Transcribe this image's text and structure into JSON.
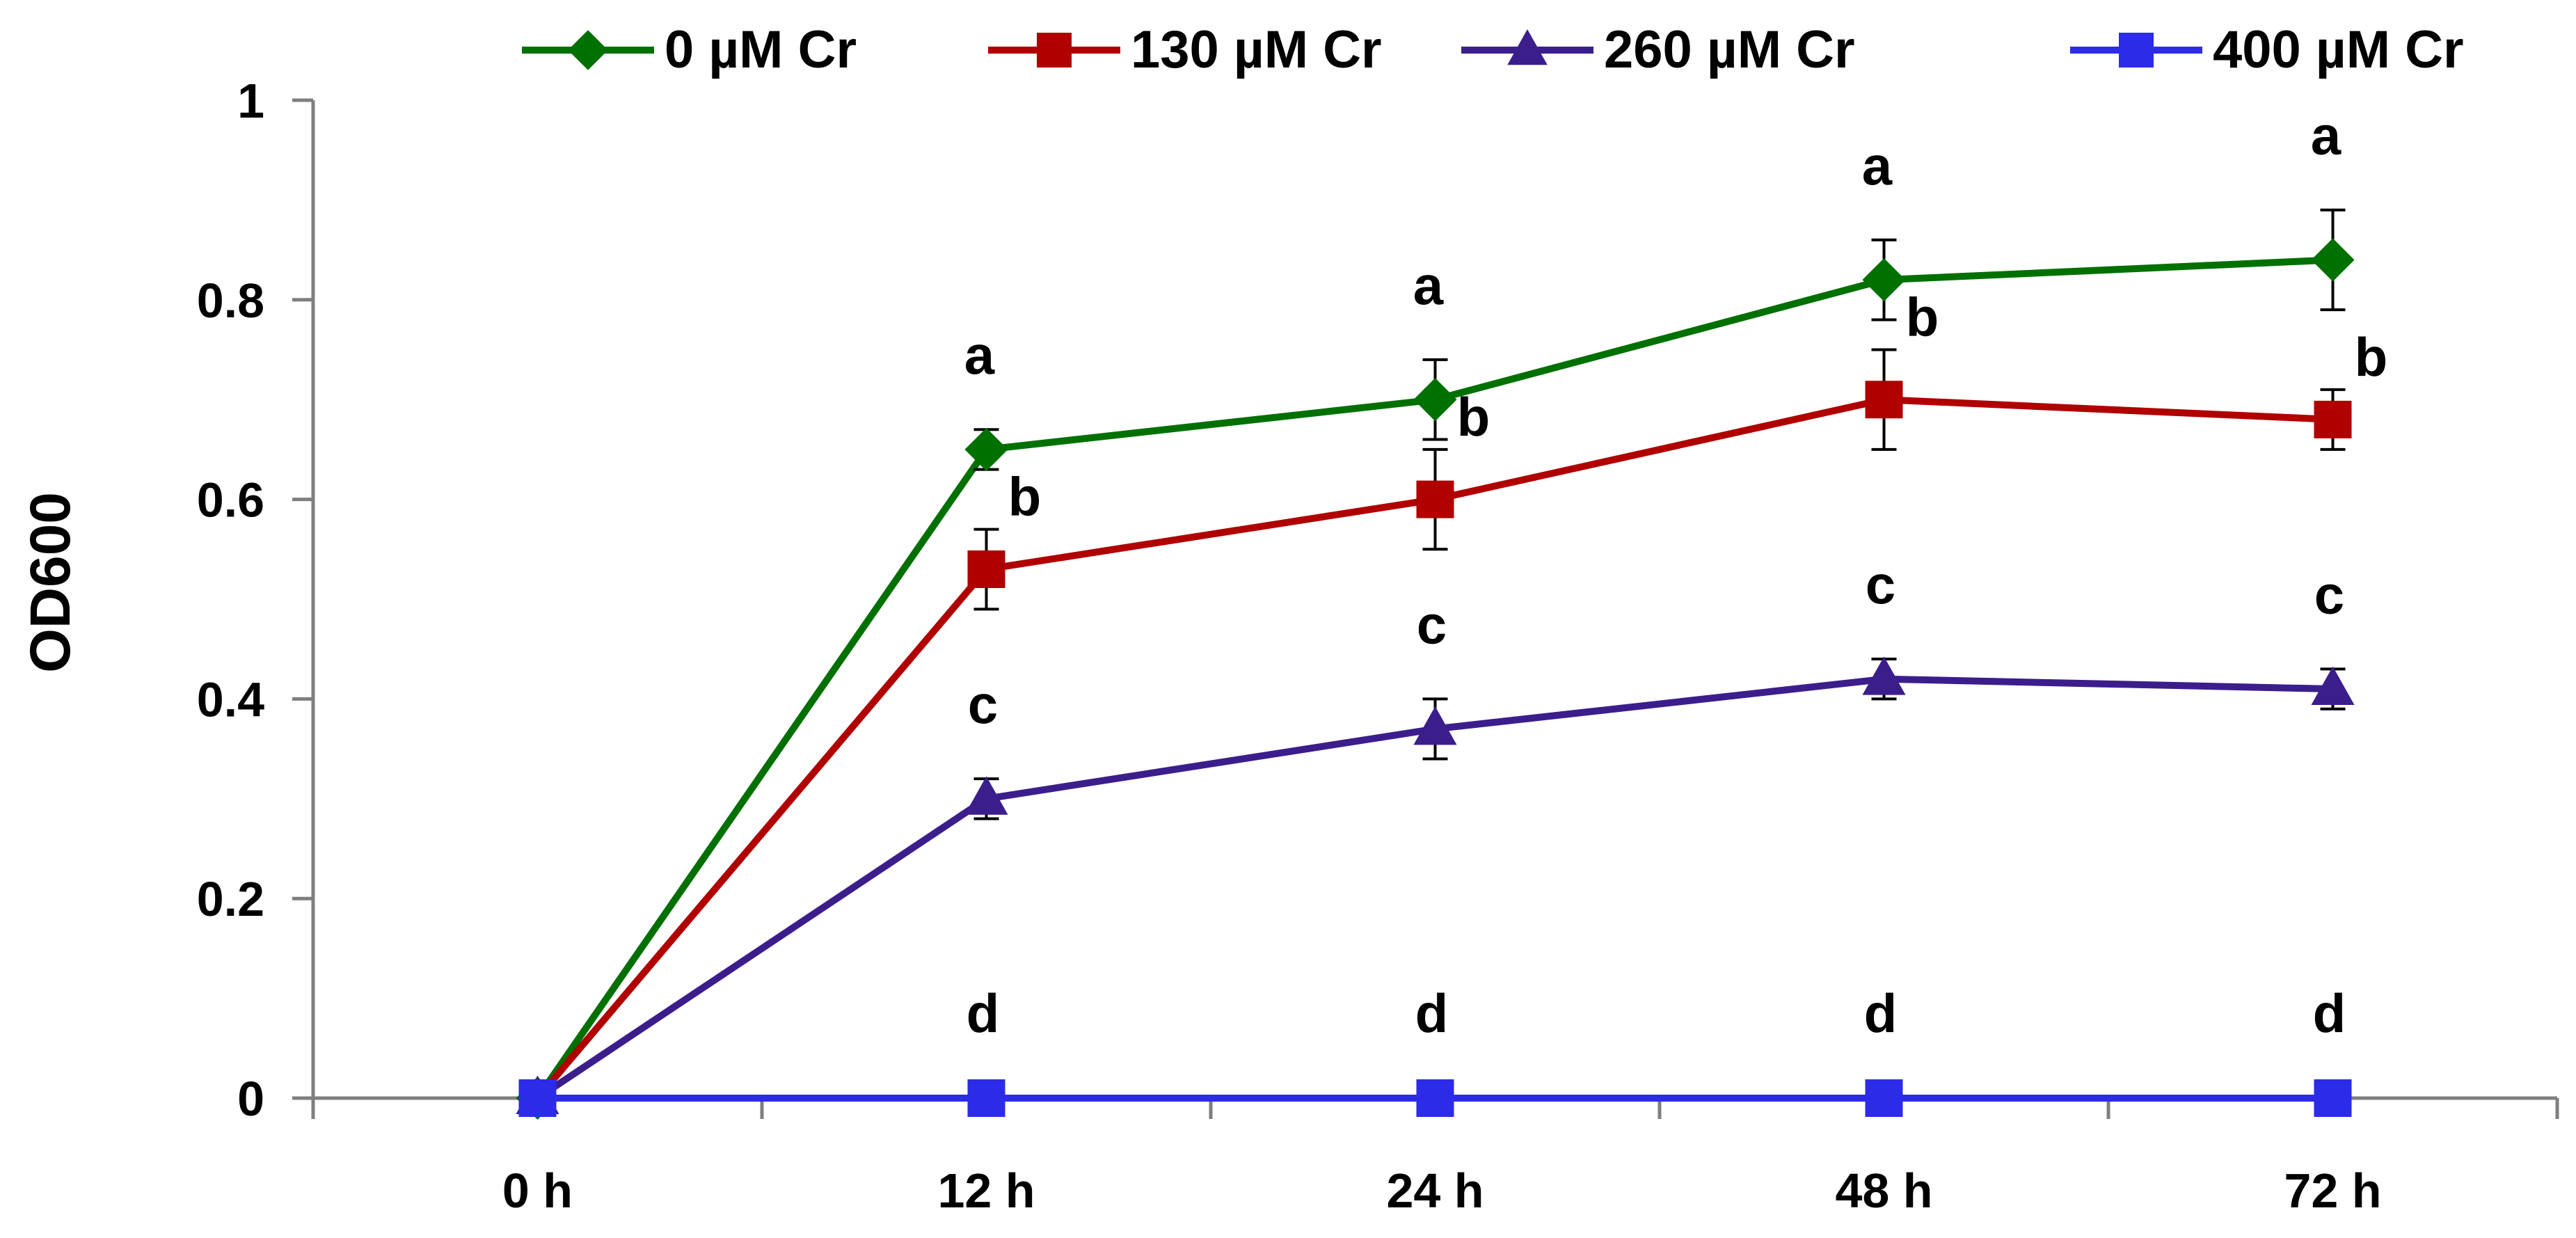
{
  "chart_data": {
    "type": "line",
    "title": "",
    "xlabel": "",
    "ylabel": "OD600",
    "categories": [
      "0 h",
      "12 h",
      "24 h",
      "48 h",
      "72 h"
    ],
    "ylim": [
      0,
      1
    ],
    "yticks": [
      0,
      0.2,
      0.4,
      0.6,
      0.8,
      1
    ],
    "ytick_labels": [
      "0",
      "0.2",
      "0.4",
      "0.6",
      "0.8",
      "1"
    ],
    "grid": false,
    "legend_position": "top",
    "series": [
      {
        "name": "0 µM Cr",
        "color": "#007000",
        "marker": "diamond",
        "values": [
          0,
          0.65,
          0.7,
          0.82,
          0.84
        ],
        "errors": [
          0,
          0.02,
          0.04,
          0.04,
          0.05
        ],
        "letters": [
          "",
          "a",
          "a",
          "a",
          "a"
        ]
      },
      {
        "name": "130 µM Cr",
        "color": "#B00000",
        "marker": "square",
        "values": [
          0,
          0.53,
          0.6,
          0.7,
          0.68
        ],
        "errors": [
          0,
          0.04,
          0.05,
          0.05,
          0.03
        ],
        "letters": [
          "",
          "b",
          "b",
          "b",
          "b"
        ]
      },
      {
        "name": "260 µM Cr",
        "color": "#3B1E8C",
        "marker": "triangle",
        "values": [
          0,
          0.3,
          0.37,
          0.42,
          0.41
        ],
        "errors": [
          0,
          0.02,
          0.03,
          0.02,
          0.02
        ],
        "letters": [
          "",
          "c",
          "c",
          "c",
          "c"
        ]
      },
      {
        "name": "400 µM Cr",
        "color": "#2B2BE8",
        "marker": "square",
        "values": [
          0,
          0,
          0,
          0,
          0
        ],
        "errors": [
          0,
          0,
          0,
          0,
          0
        ],
        "letters": [
          "",
          "d",
          "d",
          "d",
          "d"
        ]
      }
    ]
  }
}
